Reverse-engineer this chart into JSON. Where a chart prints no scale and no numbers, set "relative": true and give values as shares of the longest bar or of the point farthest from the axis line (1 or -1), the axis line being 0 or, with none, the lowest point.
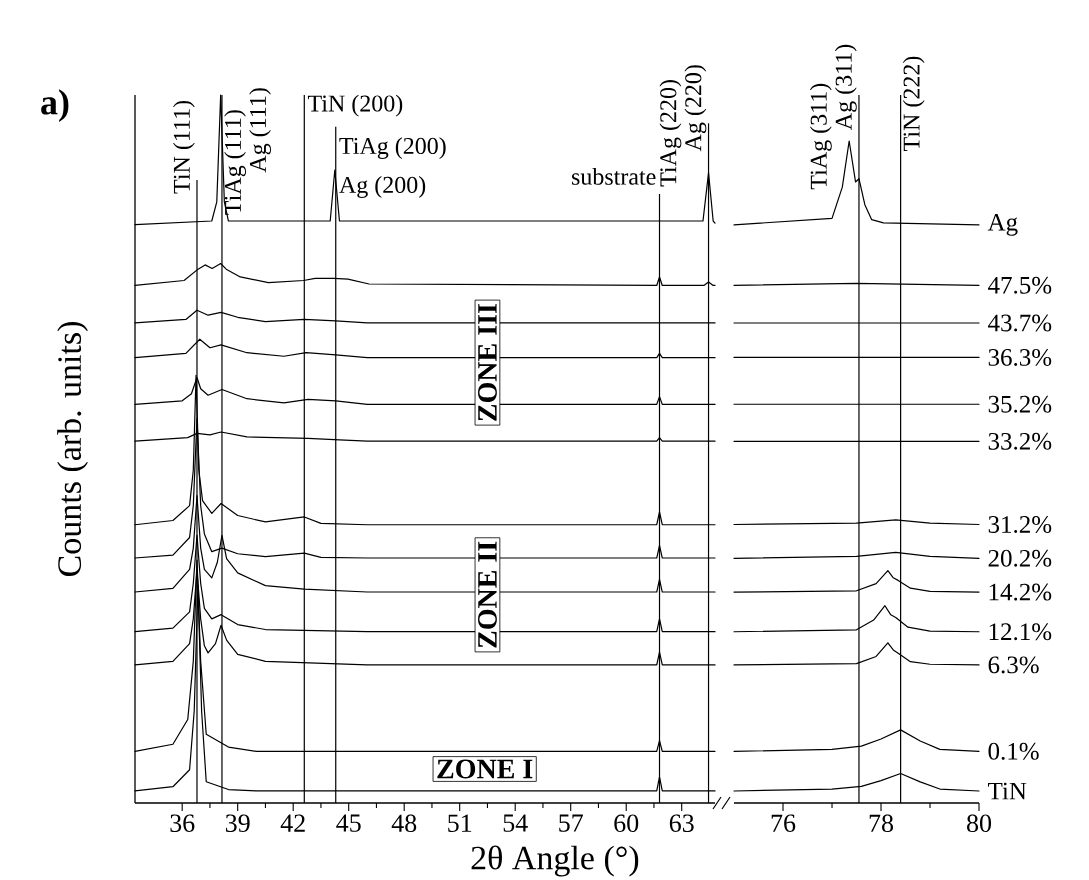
{
  "chart_data": [
    {
      "type": "line",
      "relative": true,
      "xlabel": "2θ Angle (°)",
      "ylabel": "Counts (arb. units)",
      "xlim": [
        33.45,
        64.8
      ],
      "xticks": [
        36,
        39,
        42,
        45,
        48,
        51,
        54,
        57,
        60,
        63
      ],
      "annotations": [
        "a)",
        "ZONE III",
        "ZONE II",
        "ZONE I",
        "Ag (111)",
        "Ag (200)",
        "Ag (220)"
      ],
      "ref_lines": [
        {
          "axis": "x",
          "value": 36.8,
          "label": "TiN (111)",
          "color": "#000000"
        },
        {
          "axis": "x",
          "value": 38.15,
          "label": "TiAg (111)",
          "color": "#000000"
        },
        {
          "axis": "x",
          "value": 42.6,
          "label": "TiN (200)",
          "color": "#000000"
        },
        {
          "axis": "x",
          "value": 44.3,
          "label": "TiAg (200)",
          "color": "#000000"
        },
        {
          "axis": "x",
          "value": 61.8,
          "label": "substrate",
          "color": "#000000"
        },
        {
          "axis": "x",
          "value": 64.45,
          "label": "TiAg (220)",
          "color": "#000000"
        }
      ],
      "series": [
        {
          "color": "#000000",
          "x": [
            33.45,
            37.6,
            37.87,
            38.08,
            38.28,
            38.5,
            44.0,
            44.25,
            44.5,
            64.15,
            64.45,
            64.7,
            64.8
          ],
          "values": [
            0.817,
            0.822,
            0.849,
            1.0,
            0.849,
            0.822,
            0.822,
            0.894,
            0.822,
            0.822,
            0.89,
            0.822,
            0.819
          ]
        },
        {
          "color": "#000000",
          "x": [
            33.45,
            36.1,
            36.86,
            37.24,
            37.62,
            38.08,
            38.38,
            39.14,
            40.66,
            42.56,
            43.19,
            44.2,
            44.96,
            46.1,
            61.65,
            61.8,
            61.95,
            64.2,
            64.45,
            64.7,
            64.8
          ],
          "values": [
            0.731,
            0.738,
            0.754,
            0.76,
            0.755,
            0.762,
            0.754,
            0.743,
            0.735,
            0.738,
            0.741,
            0.741,
            0.74,
            0.733,
            0.731,
            0.743,
            0.731,
            0.731,
            0.736,
            0.731,
            0.731
          ]
        },
        {
          "color": "#000000",
          "x": [
            33.45,
            36.2,
            36.8,
            37.4,
            38.1,
            39.0,
            40.5,
            42.6,
            44.3,
            46.0,
            64.8
          ],
          "values": [
            0.678,
            0.683,
            0.696,
            0.689,
            0.693,
            0.686,
            0.68,
            0.683,
            0.681,
            0.678,
            0.678
          ]
        },
        {
          "color": "#000000",
          "x": [
            33.45,
            36.2,
            36.95,
            37.5,
            38.1,
            39.5,
            41.5,
            42.7,
            44.3,
            46.0,
            61.65,
            61.8,
            61.95,
            64.8
          ],
          "values": [
            0.629,
            0.635,
            0.655,
            0.643,
            0.647,
            0.636,
            0.631,
            0.636,
            0.633,
            0.629,
            0.629,
            0.635,
            0.629,
            0.629
          ]
        },
        {
          "color": "#000000",
          "x": [
            33.45,
            36.0,
            36.5,
            36.8,
            37.0,
            37.4,
            38.15,
            39.5,
            41.5,
            42.8,
            44.3,
            46.0,
            61.65,
            61.8,
            61.95,
            64.8
          ],
          "values": [
            0.563,
            0.568,
            0.578,
            0.601,
            0.585,
            0.576,
            0.584,
            0.571,
            0.565,
            0.57,
            0.568,
            0.563,
            0.563,
            0.574,
            0.563,
            0.563
          ]
        },
        {
          "color": "#000000",
          "x": [
            33.45,
            36.3,
            36.8,
            37.5,
            38.1,
            39.5,
            42.8,
            44.5,
            46.0,
            61.65,
            61.8,
            61.95,
            64.8
          ],
          "values": [
            0.511,
            0.516,
            0.522,
            0.52,
            0.524,
            0.517,
            0.515,
            0.513,
            0.511,
            0.511,
            0.516,
            0.511,
            0.511
          ]
        },
        {
          "color": "#000000",
          "x": [
            33.45,
            35.5,
            36.4,
            36.6,
            36.75,
            36.9,
            37.1,
            37.6,
            38.1,
            39.0,
            40.5,
            42.6,
            43.5,
            46.0,
            61.65,
            61.8,
            61.95,
            64.8
          ],
          "values": [
            0.393,
            0.399,
            0.42,
            0.47,
            0.604,
            0.47,
            0.427,
            0.409,
            0.423,
            0.406,
            0.397,
            0.404,
            0.395,
            0.393,
            0.393,
            0.411,
            0.393,
            0.393
          ]
        },
        {
          "color": "#000000",
          "x": [
            33.45,
            35.5,
            36.4,
            36.6,
            36.8,
            37.0,
            37.2,
            37.6,
            38.15,
            39.0,
            40.5,
            42.6,
            43.5,
            46.0,
            61.65,
            61.8,
            61.95,
            64.8
          ],
          "values": [
            0.346,
            0.35,
            0.375,
            0.42,
            0.543,
            0.42,
            0.38,
            0.355,
            0.36,
            0.352,
            0.348,
            0.353,
            0.347,
            0.346,
            0.346,
            0.364,
            0.346,
            0.346
          ]
        },
        {
          "color": "#000000",
          "x": [
            33.45,
            35.5,
            36.4,
            36.6,
            36.8,
            37.0,
            37.2,
            37.6,
            37.9,
            38.15,
            38.4,
            39.0,
            40.5,
            42.6,
            46.0,
            61.65,
            61.8,
            61.95,
            64.8
          ],
          "values": [
            0.298,
            0.303,
            0.33,
            0.36,
            0.434,
            0.36,
            0.33,
            0.318,
            0.34,
            0.378,
            0.345,
            0.325,
            0.307,
            0.302,
            0.298,
            0.298,
            0.316,
            0.298,
            0.298
          ]
        },
        {
          "color": "#000000",
          "x": [
            33.45,
            35.5,
            36.4,
            36.6,
            36.8,
            37.0,
            37.2,
            37.6,
            38.1,
            39.0,
            40.5,
            46.0,
            61.65,
            61.8,
            61.95,
            64.8
          ],
          "values": [
            0.242,
            0.247,
            0.27,
            0.31,
            0.378,
            0.31,
            0.275,
            0.26,
            0.266,
            0.252,
            0.245,
            0.242,
            0.242,
            0.26,
            0.242,
            0.242
          ]
        },
        {
          "color": "#000000",
          "x": [
            33.45,
            35.5,
            36.4,
            36.6,
            36.8,
            37.0,
            37.2,
            37.4,
            37.8,
            38.1,
            38.4,
            39.0,
            40.5,
            46.0,
            61.65,
            61.8,
            61.95,
            64.8
          ],
          "values": [
            0.195,
            0.2,
            0.225,
            0.26,
            0.33,
            0.26,
            0.222,
            0.212,
            0.225,
            0.251,
            0.23,
            0.21,
            0.2,
            0.195,
            0.195,
            0.213,
            0.195,
            0.195
          ]
        },
        {
          "color": "#000000",
          "x": [
            33.45,
            35.5,
            36.3,
            36.6,
            36.8,
            37.0,
            37.3,
            38.5,
            40.0,
            61.65,
            61.8,
            61.95,
            64.8
          ],
          "values": [
            0.073,
            0.083,
            0.118,
            0.2,
            0.343,
            0.2,
            0.097,
            0.079,
            0.073,
            0.073,
            0.088,
            0.073,
            0.073
          ]
        },
        {
          "color": "#000000",
          "x": [
            33.45,
            35.5,
            36.4,
            36.65,
            36.85,
            37.05,
            37.3,
            38.5,
            40.0,
            61.65,
            61.8,
            61.95,
            64.8
          ],
          "values": [
            0.017,
            0.023,
            0.047,
            0.13,
            0.307,
            0.13,
            0.03,
            0.019,
            0.017,
            0.017,
            0.037,
            0.017,
            0.017
          ]
        }
      ]
    },
    {
      "type": "line",
      "relative": true,
      "xlim": [
        75,
        80
      ],
      "xticks": [
        76,
        78,
        80
      ],
      "annotations": [
        "Ag (311)"
      ],
      "ref_lines": [
        {
          "axis": "x",
          "value": 77.55,
          "label": "TiAg (311)",
          "color": "#000000"
        },
        {
          "axis": "x",
          "value": 78.4,
          "label": "TiN (222)",
          "color": "#000000"
        }
      ],
      "series": [
        {
          "name": "Ag",
          "color": "#000000",
          "x": [
            75,
            77.0,
            77.21,
            77.35,
            77.48,
            77.55,
            77.67,
            77.81,
            78.05,
            80
          ],
          "values": [
            0.871,
            0.881,
            0.929,
            1.0,
            0.937,
            0.942,
            0.902,
            0.879,
            0.874,
            0.871
          ]
        },
        {
          "name": "47.5%",
          "color": "#000000",
          "x": [
            75,
            77.5,
            80
          ],
          "values": [
            0.778,
            0.781,
            0.778
          ]
        },
        {
          "name": "43.7%",
          "color": "#000000",
          "x": [
            75,
            80
          ],
          "values": [
            0.72,
            0.72
          ]
        },
        {
          "name": "36.3%",
          "color": "#000000",
          "x": [
            75,
            80
          ],
          "values": [
            0.667,
            0.667
          ]
        },
        {
          "name": "35.2%",
          "color": "#000000",
          "x": [
            75,
            80
          ],
          "values": [
            0.595,
            0.595
          ]
        },
        {
          "name": "33.2%",
          "color": "#000000",
          "x": [
            75,
            80
          ],
          "values": [
            0.538,
            0.538
          ]
        },
        {
          "name": "31.2%",
          "color": "#000000",
          "x": [
            75,
            77.5,
            78.3,
            79.0,
            80
          ],
          "values": [
            0.41,
            0.412,
            0.417,
            0.412,
            0.41
          ]
        },
        {
          "name": "20.2%",
          "color": "#000000",
          "x": [
            75,
            77.5,
            78.3,
            79.0,
            80
          ],
          "values": [
            0.358,
            0.361,
            0.367,
            0.361,
            0.358
          ]
        },
        {
          "name": "14.2%",
          "color": "#000000",
          "x": [
            75,
            77.5,
            77.9,
            78.14,
            78.25,
            78.35,
            78.6,
            79.0,
            80
          ],
          "values": [
            0.306,
            0.308,
            0.319,
            0.339,
            0.328,
            0.324,
            0.312,
            0.307,
            0.306
          ]
        },
        {
          "name": "12.1%",
          "color": "#000000",
          "x": [
            75,
            77.5,
            77.85,
            78.08,
            78.2,
            78.3,
            78.55,
            79.0,
            80
          ],
          "values": [
            0.245,
            0.248,
            0.263,
            0.285,
            0.271,
            0.267,
            0.252,
            0.246,
            0.245
          ]
        },
        {
          "name": "6.3%",
          "color": "#000000",
          "x": [
            75,
            77.5,
            77.9,
            78.14,
            78.25,
            78.35,
            78.6,
            79.0,
            80
          ],
          "values": [
            0.194,
            0.196,
            0.207,
            0.228,
            0.217,
            0.212,
            0.199,
            0.195,
            0.194
          ]
        },
        {
          "name": "0.1%",
          "color": "#000000",
          "x": [
            75,
            77.0,
            77.6,
            78.0,
            78.4,
            78.8,
            79.2,
            80
          ],
          "values": [
            0.061,
            0.064,
            0.069,
            0.08,
            0.094,
            0.077,
            0.064,
            0.061
          ]
        },
        {
          "name": "TiN",
          "color": "#000000",
          "x": [
            75,
            77.0,
            77.6,
            78.0,
            78.4,
            78.8,
            79.2,
            80
          ],
          "values": [
            0,
            0.003,
            0.007,
            0.016,
            0.027,
            0.014,
            0.003,
            0
          ]
        }
      ]
    }
  ]
}
